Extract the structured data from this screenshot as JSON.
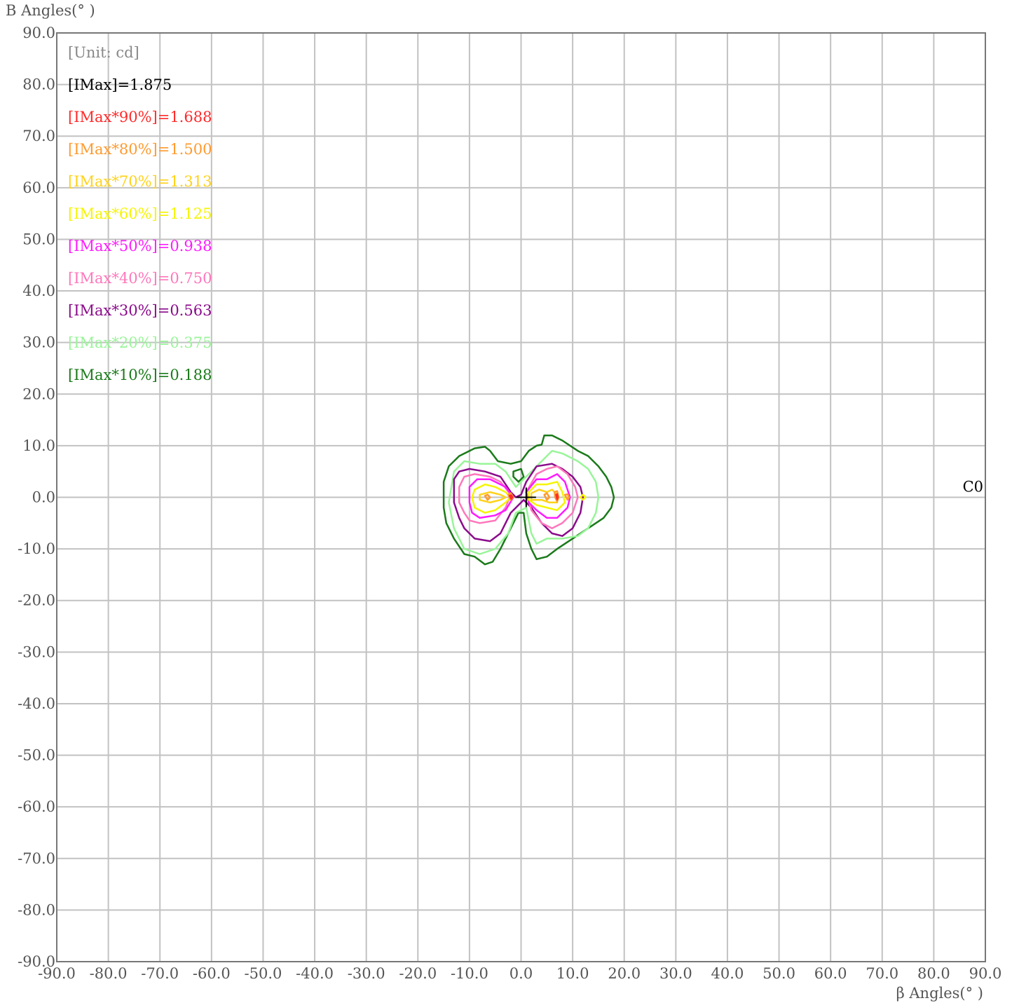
{
  "chart_data": {
    "type": "contour",
    "ylabel": "B Angles(° )",
    "xlabel": "β  Angles(° )",
    "xlim": [
      -90,
      90
    ],
    "ylim": [
      -90,
      90
    ],
    "x_step": 10,
    "y_step": 10,
    "x_tick_labels": [
      "-90.0",
      "-80.0",
      "-70.0",
      "-60.0",
      "-50.0",
      "-40.0",
      "-30.0",
      "-20.0",
      "-10.0",
      "0.0",
      "10.0",
      "20.0",
      "30.0",
      "40.0",
      "50.0",
      "60.0",
      "70.0",
      "80.0",
      "90.0"
    ],
    "y_tick_labels": [
      "90.0",
      "80.0",
      "70.0",
      "60.0",
      "50.0",
      "40.0",
      "30.0",
      "20.0",
      "10.0",
      "0.0",
      "-10.0",
      "-20.0",
      "-30.0",
      "-40.0",
      "-50.0",
      "-60.0",
      "-70.0",
      "-80.0",
      "-90.0"
    ],
    "grid": true,
    "unit_label": "[Unit: cd]",
    "imax": 1.875,
    "plane_label": "C0",
    "center_marker": [
      1,
      0
    ],
    "legend": [
      {
        "label": "[IMax]=1.875",
        "color": "#000000"
      },
      {
        "label": "[IMax*90%]=1.688",
        "color": "#ff2a2a",
        "fraction": 0.9
      },
      {
        "label": "[IMax*80%]=1.500",
        "color": "#ff9a2e",
        "fraction": 0.8
      },
      {
        "label": "[IMax*70%]=1.313",
        "color": "#ffd21a",
        "fraction": 0.7
      },
      {
        "label": "[IMax*60%]=1.125",
        "color": "#f5f500",
        "fraction": 0.6
      },
      {
        "label": "[IMax*50%]=0.938",
        "color": "#ff1aff",
        "fraction": 0.5
      },
      {
        "label": "[IMax*40%]=0.750",
        "color": "#ff77bb",
        "fraction": 0.4
      },
      {
        "label": "[IMax*30%]=0.563",
        "color": "#8b0a8b",
        "fraction": 0.3
      },
      {
        "label": "[IMax*20%]=0.375",
        "color": "#98f598",
        "fraction": 0.2
      },
      {
        "label": "[IMax*10%]=0.188",
        "color": "#1a7a1a",
        "fraction": 0.1
      }
    ],
    "contours": [
      {
        "level": "10%",
        "color": "#1a7a1a",
        "paths": [
          [
            [
              -15,
              3
            ],
            [
              -14,
              6
            ],
            [
              -12,
              8
            ],
            [
              -9,
              9.5
            ],
            [
              -7,
              9.8
            ],
            [
              -6,
              9
            ],
            [
              -4.5,
              7
            ],
            [
              -2,
              6.5
            ],
            [
              0,
              7
            ],
            [
              1.5,
              9
            ],
            [
              3,
              10
            ],
            [
              4,
              10.2
            ],
            [
              4.5,
              12
            ],
            [
              6,
              12
            ],
            [
              8,
              11
            ],
            [
              11,
              9
            ],
            [
              13,
              8
            ],
            [
              15,
              6
            ],
            [
              16.5,
              4
            ],
            [
              17.5,
              2
            ],
            [
              18,
              0
            ],
            [
              17.5,
              -2
            ],
            [
              16,
              -4
            ],
            [
              13,
              -6
            ],
            [
              10,
              -8
            ],
            [
              7,
              -10
            ],
            [
              5,
              -11.5
            ],
            [
              3,
              -12
            ],
            [
              2,
              -10
            ],
            [
              1,
              -7
            ],
            [
              0.5,
              -3
            ],
            [
              -0.5,
              -3
            ],
            [
              -2,
              -6
            ],
            [
              -4,
              -10
            ],
            [
              -5.5,
              -12.5
            ],
            [
              -7,
              -13
            ],
            [
              -9,
              -11.5
            ],
            [
              -11,
              -11
            ],
            [
              -13,
              -8
            ],
            [
              -14.5,
              -5
            ],
            [
              -15,
              -2
            ],
            [
              -15,
              3
            ]
          ],
          [
            [
              -1.5,
              5
            ],
            [
              0,
              5.5
            ],
            [
              0.5,
              4
            ],
            [
              -0.5,
              3
            ],
            [
              -1.5,
              4
            ],
            [
              -1.5,
              5
            ]
          ]
        ]
      },
      {
        "level": "20%",
        "color": "#98f598",
        "paths": [
          [
            [
              -13,
              5
            ],
            [
              -11,
              7
            ],
            [
              -8,
              6.5
            ],
            [
              -5,
              6.5
            ],
            [
              -3,
              5
            ],
            [
              -1,
              2
            ],
            [
              0,
              3
            ],
            [
              2,
              5
            ],
            [
              4,
              7
            ],
            [
              6,
              9
            ],
            [
              8,
              8.5
            ],
            [
              11,
              7
            ],
            [
              13,
              5.5
            ],
            [
              14.5,
              3
            ],
            [
              15,
              0
            ],
            [
              14.5,
              -3
            ],
            [
              13,
              -6
            ],
            [
              11,
              -7.5
            ],
            [
              8,
              -8
            ],
            [
              5,
              -8
            ],
            [
              3,
              -9
            ],
            [
              2,
              -7
            ],
            [
              1,
              -2
            ],
            [
              -1,
              -3
            ],
            [
              -2.5,
              -7
            ],
            [
              -5,
              -10
            ],
            [
              -8,
              -11
            ],
            [
              -11,
              -10
            ],
            [
              -13,
              -6
            ],
            [
              -14,
              -1
            ],
            [
              -13,
              5
            ]
          ]
        ]
      },
      {
        "level": "30%",
        "color": "#8b0a8b",
        "paths": [
          [
            [
              -13,
              3.5
            ],
            [
              -12,
              5
            ],
            [
              -10,
              5.5
            ],
            [
              -7,
              5
            ],
            [
              -4,
              4
            ],
            [
              -2,
              1
            ],
            [
              -1,
              0
            ],
            [
              0,
              0.5
            ],
            [
              1,
              3
            ],
            [
              3,
              6
            ],
            [
              6,
              6.5
            ],
            [
              8,
              5.5
            ],
            [
              10,
              4
            ],
            [
              11.5,
              2
            ],
            [
              12,
              0
            ],
            [
              11.5,
              -3
            ],
            [
              10,
              -6
            ],
            [
              8,
              -7.5
            ],
            [
              6,
              -7
            ],
            [
              4,
              -5
            ],
            [
              2,
              -2
            ],
            [
              0.5,
              -0.5
            ],
            [
              -2,
              -3
            ],
            [
              -4,
              -7
            ],
            [
              -6,
              -8.5
            ],
            [
              -9,
              -8
            ],
            [
              -11,
              -6
            ],
            [
              -12,
              -4
            ],
            [
              -13,
              -1
            ],
            [
              -13,
              3.5
            ]
          ]
        ]
      },
      {
        "level": "40%",
        "color": "#ff77bb",
        "paths": [
          [
            [
              -12,
              2
            ],
            [
              -11,
              4
            ],
            [
              -9,
              4.5
            ],
            [
              -6,
              4
            ],
            [
              -4,
              3
            ],
            [
              -2,
              0.5
            ],
            [
              -3,
              -2
            ],
            [
              -5,
              -4.5
            ],
            [
              -8,
              -5
            ],
            [
              -10,
              -4.5
            ],
            [
              -11,
              -3
            ],
            [
              -12,
              -1
            ],
            [
              -12,
              2
            ]
          ],
          [
            [
              1,
              1
            ],
            [
              3,
              4.5
            ],
            [
              5,
              5.5
            ],
            [
              7,
              6
            ],
            [
              9,
              4.5
            ],
            [
              10.5,
              2
            ],
            [
              11,
              0
            ],
            [
              10,
              -3
            ],
            [
              8,
              -5
            ],
            [
              6,
              -6
            ],
            [
              4,
              -5
            ],
            [
              2,
              -2.5
            ],
            [
              1,
              1
            ]
          ]
        ]
      },
      {
        "level": "50%",
        "color": "#ff1aff",
        "paths": [
          [
            [
              -10,
              2
            ],
            [
              -8.5,
              3.5
            ],
            [
              -6,
              3.5
            ],
            [
              -3,
              2
            ],
            [
              -1.5,
              0
            ],
            [
              -3,
              -2.5
            ],
            [
              -5,
              -3.5
            ],
            [
              -8,
              -4
            ],
            [
              -9.5,
              -3
            ],
            [
              -10,
              -1
            ],
            [
              -10,
              2
            ]
          ],
          [
            [
              1,
              1
            ],
            [
              3,
              3.5
            ],
            [
              5,
              3.5
            ],
            [
              7,
              4.5
            ],
            [
              8.5,
              3
            ],
            [
              9.5,
              0
            ],
            [
              9,
              -2
            ],
            [
              7,
              -4
            ],
            [
              5,
              -4
            ],
            [
              3,
              -2.5
            ],
            [
              1.5,
              -1
            ],
            [
              1,
              1
            ]
          ]
        ]
      },
      {
        "level": "60%",
        "color": "#f5f500",
        "paths": [
          [
            [
              -9,
              1.5
            ],
            [
              -7,
              2.5
            ],
            [
              -5,
              2
            ],
            [
              -3,
              1
            ],
            [
              -2,
              0
            ],
            [
              -3,
              -1
            ],
            [
              -5,
              -2.5
            ],
            [
              -7,
              -3
            ],
            [
              -9,
              -2
            ],
            [
              -9.5,
              0
            ],
            [
              -9,
              1.5
            ]
          ],
          [
            [
              1.5,
              1
            ],
            [
              3,
              2.5
            ],
            [
              5,
              2.5
            ],
            [
              7,
              3
            ],
            [
              8,
              1
            ],
            [
              8.5,
              -1
            ],
            [
              7,
              -2.5
            ],
            [
              5,
              -2
            ],
            [
              3,
              -1.5
            ],
            [
              1.5,
              -0.5
            ],
            [
              1.5,
              1
            ]
          ],
          [
            [
              12,
              0.5
            ],
            [
              12.5,
              0
            ],
            [
              12,
              -0.5
            ],
            [
              11.5,
              0
            ],
            [
              12,
              0.5
            ]
          ]
        ]
      },
      {
        "level": "70%",
        "color": "#ffd21a",
        "paths": [
          [
            [
              -8,
              0.5
            ],
            [
              -6,
              1
            ],
            [
              -4,
              0.5
            ],
            [
              -3,
              0
            ],
            [
              -4,
              -0.5
            ],
            [
              -6,
              -1
            ],
            [
              -8,
              -0.5
            ],
            [
              -8,
              0.5
            ]
          ],
          [
            [
              2,
              0.8
            ],
            [
              3.5,
              1.5
            ],
            [
              5,
              1
            ],
            [
              6,
              1.5
            ],
            [
              7,
              0.5
            ],
            [
              7,
              -1
            ],
            [
              5.5,
              -1
            ],
            [
              4,
              -0.5
            ],
            [
              2,
              -0.5
            ],
            [
              2,
              0.8
            ]
          ]
        ]
      },
      {
        "level": "80%",
        "color": "#ff9a2e",
        "paths": [
          [
            [
              -7,
              0.3
            ],
            [
              -6.5,
              0.5
            ],
            [
              -6,
              0
            ],
            [
              -6.5,
              -0.5
            ],
            [
              -7,
              0.3
            ]
          ],
          [
            [
              -2.5,
              0.5
            ],
            [
              -2,
              0.8
            ],
            [
              -1.5,
              0
            ],
            [
              -2,
              -0.5
            ],
            [
              -2.5,
              0.5
            ]
          ],
          [
            [
              4.5,
              0.5
            ],
            [
              5,
              0.8
            ],
            [
              5.5,
              0
            ],
            [
              5,
              -0.5
            ],
            [
              4.5,
              0.5
            ]
          ],
          [
            [
              6.5,
              1
            ],
            [
              7,
              1.2
            ],
            [
              7.3,
              0
            ],
            [
              7,
              -0.8
            ],
            [
              6.6,
              0
            ],
            [
              6.5,
              1
            ]
          ],
          [
            [
              8.5,
              0.5
            ],
            [
              9,
              0.6
            ],
            [
              9.3,
              0
            ],
            [
              9,
              -0.5
            ],
            [
              8.5,
              0.5
            ]
          ]
        ]
      },
      {
        "level": "90%",
        "color": "#ff2a2a",
        "paths": [
          [
            [
              -2.2,
              0.3
            ],
            [
              -1.9,
              0.4
            ],
            [
              -1.7,
              0
            ],
            [
              -1.9,
              -0.3
            ],
            [
              -2.2,
              0.3
            ]
          ],
          [
            [
              6.8,
              0.5
            ],
            [
              7,
              0.6
            ],
            [
              7.1,
              0
            ],
            [
              7,
              -0.4
            ],
            [
              6.8,
              0.5
            ]
          ]
        ]
      }
    ]
  }
}
